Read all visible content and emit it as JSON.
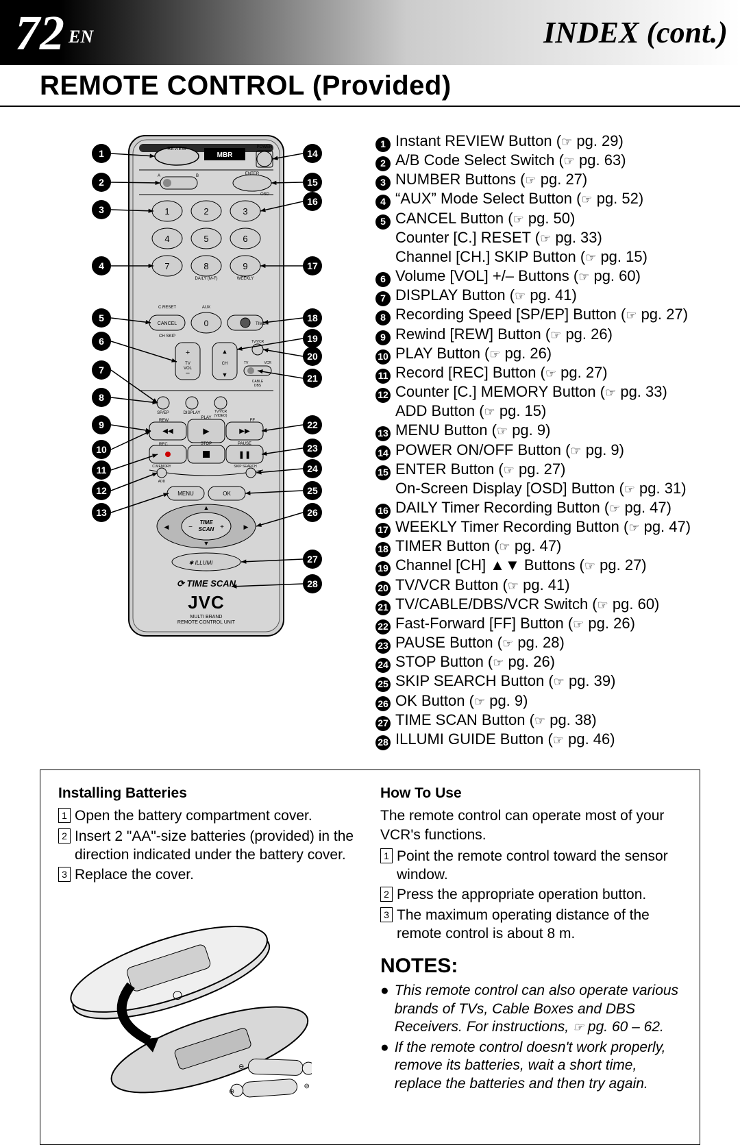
{
  "header": {
    "page_number": "72",
    "lang": "EN",
    "title_right": "INDEX (cont.)"
  },
  "section_title": "REMOTE CONTROL (Provided)",
  "items": [
    {
      "n": 1,
      "text": "Instant REVIEW Button",
      "pg": "29"
    },
    {
      "n": 2,
      "text": "A/B Code Select Switch",
      "pg": "63"
    },
    {
      "n": 3,
      "text": "NUMBER Buttons",
      "pg": "27"
    },
    {
      "n": 4,
      "text": "“AUX” Mode Select Button",
      "pg": "52"
    },
    {
      "n": 5,
      "text": "CANCEL Button",
      "pg": "50"
    },
    {
      "n": 0,
      "indent": true,
      "text": "Counter [C.] RESET",
      "pg": "33"
    },
    {
      "n": 0,
      "indent": true,
      "text": "Channel [CH.] SKIP Button",
      "pg": "15"
    },
    {
      "n": 6,
      "text": "Volume [VOL] +/– Buttons",
      "pg": "60"
    },
    {
      "n": 7,
      "text": "DISPLAY Button",
      "pg": "41"
    },
    {
      "n": 8,
      "text": "Recording Speed [SP/EP] Button",
      "pg": "27"
    },
    {
      "n": 9,
      "text": "Rewind [REW] Button",
      "pg": "26"
    },
    {
      "n": 10,
      "text": "PLAY Button",
      "pg": "26"
    },
    {
      "n": 11,
      "text": "Record [REC] Button",
      "pg": "27"
    },
    {
      "n": 12,
      "text": "Counter [C.] MEMORY Button",
      "pg": "33"
    },
    {
      "n": 0,
      "indent": true,
      "text": "ADD Button",
      "pg": "15"
    },
    {
      "n": 13,
      "text": "MENU Button",
      "pg": "9"
    },
    {
      "n": 14,
      "text": "POWER ON/OFF Button",
      "pg": "9"
    },
    {
      "n": 15,
      "text": "ENTER Button",
      "pg": "27"
    },
    {
      "n": 0,
      "indent": true,
      "text": "On-Screen Display [OSD] Button",
      "pg": "31"
    },
    {
      "n": 16,
      "text": "DAILY Timer Recording Button",
      "pg": "47"
    },
    {
      "n": 17,
      "text": "WEEKLY Timer Recording Button",
      "pg": "47"
    },
    {
      "n": 18,
      "text": "TIMER Button",
      "pg": "47"
    },
    {
      "n": 19,
      "text": "Channel [CH] ▲▼ Buttons",
      "pg": "27"
    },
    {
      "n": 20,
      "text": "TV/VCR Button",
      "pg": "41"
    },
    {
      "n": 21,
      "text": "TV/CABLE/DBS/VCR Switch",
      "pg": "60"
    },
    {
      "n": 22,
      "text": "Fast-Forward [FF] Button",
      "pg": "26"
    },
    {
      "n": 23,
      "text": "PAUSE Button",
      "pg": "28"
    },
    {
      "n": 24,
      "text": "STOP Button",
      "pg": "26"
    },
    {
      "n": 25,
      "text": "SKIP SEARCH Button",
      "pg": "39"
    },
    {
      "n": 26,
      "text": "OK Button",
      "pg": "9"
    },
    {
      "n": 27,
      "text": "TIME SCAN Button",
      "pg": "38"
    },
    {
      "n": 28,
      "text": "ILLUMI GUIDE Button",
      "pg": "46"
    }
  ],
  "remote": {
    "left_callouts": [
      1,
      2,
      3,
      4,
      5,
      6,
      7,
      8,
      9,
      10,
      11,
      12,
      13
    ],
    "right_callouts": [
      14,
      15,
      16,
      17,
      18,
      19,
      20,
      21,
      22,
      23,
      24,
      25,
      26,
      27,
      28
    ],
    "brand": "JVC",
    "brand_sub": "MULTI BRAND\nREMOTE CONTROL UNIT",
    "timescan_label": "TIME SCAN",
    "illumi_label": "ILLUMI",
    "buttons": {
      "numbers": [
        "1",
        "2",
        "3",
        "4",
        "5",
        "6",
        "7",
        "8",
        "9",
        "0"
      ],
      "cancel": "CANCEL",
      "timer": "TIMER",
      "aux": "AUX",
      "daily": "DAILY (M-F)",
      "weekly": "WEEKLY",
      "creset": "C.RESET",
      "chskip": "CH SKIP",
      "tvvol": "TV\nVOL",
      "ch": "CH",
      "tvvcr": "TV/VCR",
      "spep": "SP/EP",
      "display": "DISPLAY",
      "tvvcr2": "TV/VCR\n(VIDEO)",
      "switch": "TV   VCR",
      "cable": "CABLE\nDBS",
      "rew": "REW",
      "play": "PLAY",
      "ff": "FF",
      "rec": "REC",
      "stop": "STOP",
      "pause": "PAUSE",
      "cmemory": "C.MEMORY",
      "skipsearch": "SKIP SEARCH",
      "add": "ADD",
      "menu": "MENU",
      "ok": "OK",
      "time": "TIME",
      "scan": "SCAN",
      "review": "REVIEW",
      "mbr": "MBR",
      "power": "POWER",
      "enter": "ENTER",
      "osd": "OSD",
      "ab": "A   B"
    }
  },
  "install": {
    "heading": "Installing Batteries",
    "steps": [
      "Open the battery compartment cover.",
      "Insert 2 \"AA\"-size batteries (provided) in the direction indicated under the battery cover.",
      "Replace the cover."
    ]
  },
  "howto": {
    "heading": "How To Use",
    "intro": "The remote control can operate most of your VCR's functions.",
    "steps": [
      "Point the remote control toward the sensor window.",
      "Press the appropriate operation button.",
      "The maximum operating distance of the remote control is about 8 m."
    ]
  },
  "notes": {
    "heading": "NOTES:",
    "items": [
      "This remote control can also operate various brands of TVs, Cable Boxes and DBS Receivers. For instructions, ☞ pg. 60 – 62.",
      "If the remote control doesn't work properly, remove its batteries, wait a short time, replace the batteries and then try again."
    ]
  },
  "colors": {
    "black": "#000000",
    "white": "#ffffff",
    "remote_body": "#cfcfcf",
    "remote_dark": "#8a8a8a"
  }
}
